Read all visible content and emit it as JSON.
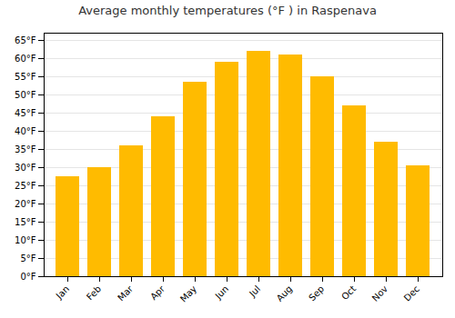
{
  "chart_data": {
    "type": "bar",
    "title": "Average monthly temperatures (°F ) in Raspenava",
    "categories": [
      "Jan",
      "Feb",
      "Mar",
      "Apr",
      "May",
      "Jun",
      "Jul",
      "Aug",
      "Sep",
      "Oct",
      "Nov",
      "Dec"
    ],
    "values": [
      27.5,
      30.0,
      36.0,
      44.0,
      53.5,
      59.0,
      62.0,
      61.0,
      55.0,
      47.0,
      37.0,
      30.5
    ],
    "color": "#FFBB00",
    "ylim": [
      0,
      67
    ],
    "yticks": [
      {
        "value": 0,
        "label": "0°F"
      },
      {
        "value": 5,
        "label": "5°F"
      },
      {
        "value": 10,
        "label": "10°F"
      },
      {
        "value": 15,
        "label": "15°F"
      },
      {
        "value": 20,
        "label": "20°F"
      },
      {
        "value": 25,
        "label": "25°F"
      },
      {
        "value": 30,
        "label": "30°F"
      },
      {
        "value": 35,
        "label": "35°F"
      },
      {
        "value": 40,
        "label": "40°F"
      },
      {
        "value": 45,
        "label": "45°F"
      },
      {
        "value": 50,
        "label": "50°F"
      },
      {
        "value": 55,
        "label": "55°F"
      },
      {
        "value": 60,
        "label": "60°F"
      },
      {
        "value": 65,
        "label": "65°F"
      }
    ],
    "grid": true
  }
}
